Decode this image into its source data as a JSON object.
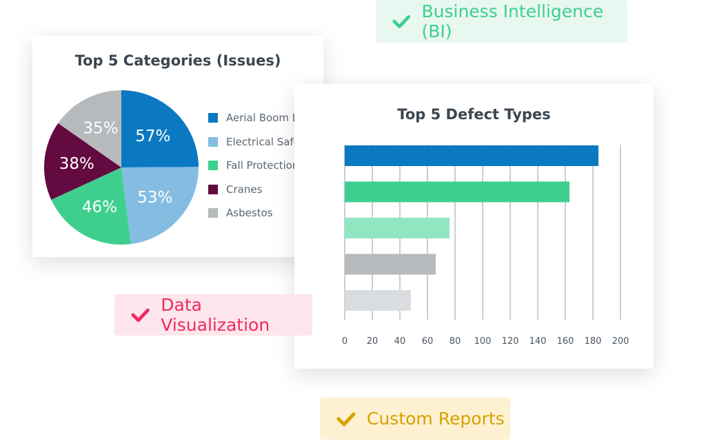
{
  "badges": {
    "bi": {
      "label": "Business Intelligence (BI)",
      "icon": "check-icon",
      "color": "#3ecf8e",
      "bg": "#e8f8f0"
    },
    "dataviz": {
      "label": "Data Visualization",
      "icon": "check-icon",
      "color": "#ee2a64",
      "bg": "#fde6ec"
    },
    "reports": {
      "label": "Custom Reports",
      "icon": "check-icon",
      "color": "#d8a100",
      "bg": "#fdf1d2"
    }
  },
  "chart_data": [
    {
      "type": "pie",
      "title": "Top 5 Categories (Issues)",
      "categories": [
        "Aerial Boom Lifts",
        "Electrical Safety",
        "Fall Protection",
        "Cranes",
        "Asbestos"
      ],
      "values": [
        57,
        53,
        46,
        38,
        35
      ],
      "labels": [
        "57%",
        "53%",
        "46%",
        "38%",
        "35%"
      ],
      "colors": [
        "#0a79c1",
        "#85bde2",
        "#3ecf8e",
        "#630a40",
        "#b6babd"
      ],
      "legend": "right"
    },
    {
      "type": "bar",
      "orientation": "horizontal",
      "title": "Top 5 Defect Types",
      "values": [
        184,
        163,
        76,
        66,
        48
      ],
      "colors": [
        "#0a79c1",
        "#3ecf8e",
        "#91e6c2",
        "#b6babd",
        "#dadde0"
      ],
      "xlim": [
        0,
        200
      ],
      "xticks": [
        "0",
        "20",
        "40",
        "60",
        "80",
        "100",
        "120",
        "140",
        "160",
        "180",
        "200"
      ],
      "grid": true
    }
  ]
}
